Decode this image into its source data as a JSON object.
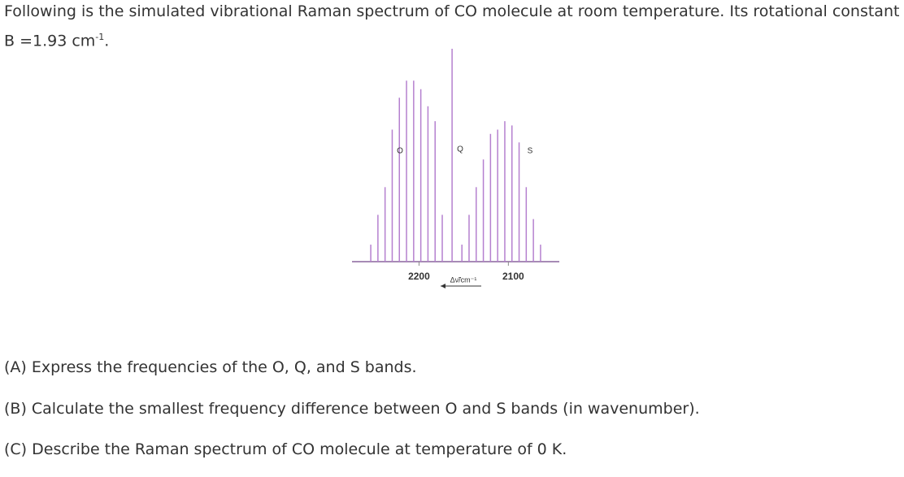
{
  "text": {
    "intro": "Following is the simulated vibrational Raman spectrum of CO molecule at room temperature. Its rotational constant B =1.93 cm",
    "intro_sup": "-1",
    "intro_end": ".",
    "questions": [
      "(A) Express the frequencies of the O, Q, and S bands.",
      "(B) Calculate the smallest frequency difference between O and S bands (in wavenumber).",
      "(C) Describe the Raman spectrum of CO molecule at temperature of 0 K."
    ]
  },
  "chart_data": {
    "type": "spectrum",
    "x_label": "Δν̃/cm⁻¹",
    "annotations": [
      "O",
      "Q",
      "S"
    ],
    "x": [
      2254,
      2246,
      2238,
      2230,
      2222,
      2214,
      2206,
      2198,
      2190,
      2182,
      2174,
      2163,
      2152,
      2144,
      2136,
      2128,
      2120,
      2112,
      2104,
      2096,
      2088,
      2080,
      2072,
      2064
    ],
    "values": [
      8,
      22,
      35,
      62,
      77,
      85,
      85,
      81,
      73,
      66,
      22,
      100,
      8,
      22,
      35,
      48,
      60,
      62,
      66,
      64,
      56,
      35,
      20,
      8
    ],
    "color": "#b580cf",
    "xlim": [
      2275,
      2043
    ],
    "ylim": [
      0,
      100
    ],
    "xticks": [
      2200,
      2100
    ]
  }
}
